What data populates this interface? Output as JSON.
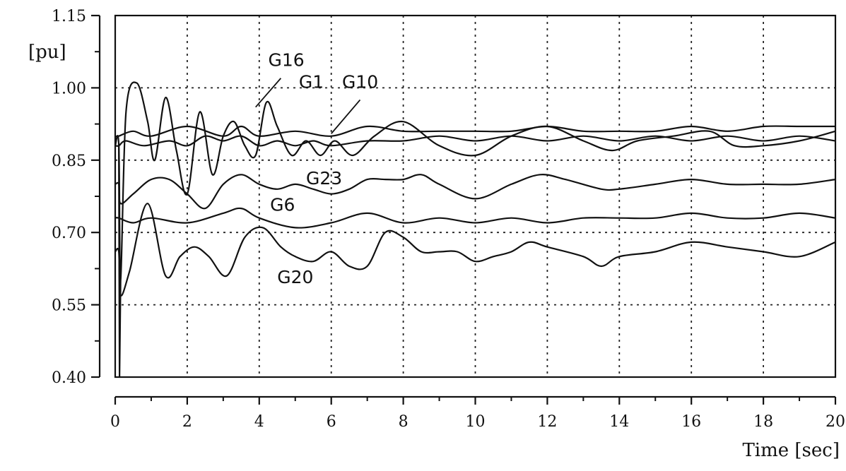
{
  "chart_data": {
    "type": "line",
    "title": "",
    "xlabel": "Time [sec]",
    "ylabel": "[pu]",
    "xlim": [
      0,
      20
    ],
    "ylim": [
      0.4,
      1.15
    ],
    "xticks": [
      "0",
      "2",
      "4",
      "6",
      "8",
      "10",
      "12",
      "14",
      "16",
      "18",
      "20"
    ],
    "yticks": [
      "0.40",
      "0.55",
      "0.70",
      "0.85",
      "1.00",
      "1.15"
    ],
    "grid": true,
    "series": [
      {
        "name": "G16",
        "x": [
          0,
          0.1,
          0.15,
          0.3,
          0.6,
          0.9,
          1.1,
          1.4,
          1.7,
          2.0,
          2.35,
          2.7,
          3.0,
          3.3,
          3.6,
          3.9,
          4.2,
          4.5,
          4.9,
          5.3,
          5.7,
          6.1,
          6.6,
          7.2,
          8.0,
          9.0,
          10.0,
          11.0,
          12.0,
          13.0,
          13.8,
          14.5,
          15.5,
          16.5,
          17.2,
          18.0,
          19.0,
          20.0
        ],
        "y": [
          0.88,
          0.88,
          0.6,
          0.95,
          1.01,
          0.93,
          0.85,
          0.98,
          0.87,
          0.78,
          0.95,
          0.82,
          0.9,
          0.93,
          0.88,
          0.86,
          0.97,
          0.92,
          0.86,
          0.89,
          0.86,
          0.89,
          0.86,
          0.9,
          0.93,
          0.88,
          0.86,
          0.9,
          0.92,
          0.89,
          0.87,
          0.89,
          0.9,
          0.91,
          0.88,
          0.88,
          0.89,
          0.91
        ]
      },
      {
        "name": "G1",
        "x": [
          0,
          0.1,
          0.3,
          0.8,
          1.5,
          2.0,
          2.5,
          3.0,
          3.5,
          4.0,
          4.5,
          5.0,
          5.5,
          6.0,
          7.0,
          8.0,
          9.0,
          10.0,
          11.0,
          12.0,
          13.0,
          14.0,
          15.0,
          16.0,
          17.0,
          18.0,
          19.0,
          20.0
        ],
        "y": [
          0.88,
          0.88,
          0.89,
          0.88,
          0.89,
          0.88,
          0.9,
          0.89,
          0.9,
          0.88,
          0.89,
          0.88,
          0.89,
          0.88,
          0.89,
          0.89,
          0.9,
          0.89,
          0.9,
          0.89,
          0.9,
          0.89,
          0.9,
          0.89,
          0.9,
          0.89,
          0.9,
          0.89
        ]
      },
      {
        "name": "G10",
        "x": [
          0,
          0.1,
          0.5,
          1.0,
          2.0,
          3.0,
          3.5,
          4.0,
          5.0,
          6.0,
          7.0,
          8.0,
          9.0,
          10.0,
          11.0,
          12.0,
          13.0,
          14.0,
          15.0,
          16.0,
          17.0,
          18.0,
          19.0,
          20.0
        ],
        "y": [
          0.9,
          0.9,
          0.91,
          0.9,
          0.92,
          0.9,
          0.92,
          0.9,
          0.91,
          0.9,
          0.92,
          0.91,
          0.91,
          0.91,
          0.91,
          0.92,
          0.91,
          0.91,
          0.91,
          0.92,
          0.91,
          0.92,
          0.92,
          0.92
        ]
      },
      {
        "name": "G23",
        "x": [
          0,
          0.1,
          0.15,
          0.5,
          1.0,
          1.5,
          2.0,
          2.5,
          3.0,
          3.5,
          4.0,
          4.5,
          5.0,
          5.5,
          6.0,
          6.5,
          7.0,
          7.5,
          8.0,
          8.5,
          9.0,
          10.0,
          11.0,
          11.8,
          12.5,
          13.5,
          14.0,
          15.0,
          16.0,
          17.0,
          18.0,
          19.0,
          20.0
        ],
        "y": [
          0.8,
          0.8,
          0.76,
          0.78,
          0.81,
          0.81,
          0.78,
          0.75,
          0.8,
          0.82,
          0.8,
          0.79,
          0.8,
          0.79,
          0.78,
          0.79,
          0.81,
          0.81,
          0.81,
          0.82,
          0.8,
          0.77,
          0.8,
          0.82,
          0.81,
          0.79,
          0.79,
          0.8,
          0.81,
          0.8,
          0.8,
          0.8,
          0.81
        ]
      },
      {
        "name": "G6",
        "x": [
          0,
          0.1,
          0.5,
          1.0,
          2.0,
          3.0,
          3.5,
          4.0,
          5.0,
          6.0,
          7.0,
          8.0,
          9.0,
          10.0,
          11.0,
          12.0,
          13.0,
          14.0,
          15.0,
          16.0,
          17.0,
          18.0,
          19.0,
          20.0
        ],
        "y": [
          0.73,
          0.73,
          0.72,
          0.73,
          0.72,
          0.74,
          0.75,
          0.73,
          0.71,
          0.72,
          0.74,
          0.72,
          0.73,
          0.72,
          0.73,
          0.72,
          0.73,
          0.73,
          0.73,
          0.74,
          0.73,
          0.73,
          0.74,
          0.73
        ]
      },
      {
        "name": "G20",
        "x": [
          0,
          0.1,
          0.15,
          0.4,
          0.9,
          1.4,
          1.8,
          2.2,
          2.6,
          3.1,
          3.6,
          4.1,
          4.6,
          5.0,
          5.5,
          6.0,
          6.5,
          7.0,
          7.5,
          8.0,
          8.5,
          9.0,
          9.5,
          10.0,
          10.5,
          11.0,
          11.5,
          12.0,
          13.0,
          13.5,
          14.0,
          15.0,
          16.0,
          17.0,
          18.0,
          19.0,
          20.0
        ],
        "y": [
          0.66,
          0.66,
          0.57,
          0.62,
          0.76,
          0.61,
          0.65,
          0.67,
          0.65,
          0.61,
          0.69,
          0.71,
          0.67,
          0.65,
          0.64,
          0.66,
          0.63,
          0.63,
          0.7,
          0.69,
          0.66,
          0.66,
          0.66,
          0.64,
          0.65,
          0.66,
          0.68,
          0.67,
          0.65,
          0.63,
          0.65,
          0.66,
          0.68,
          0.67,
          0.66,
          0.65,
          0.68
        ]
      }
    ]
  }
}
